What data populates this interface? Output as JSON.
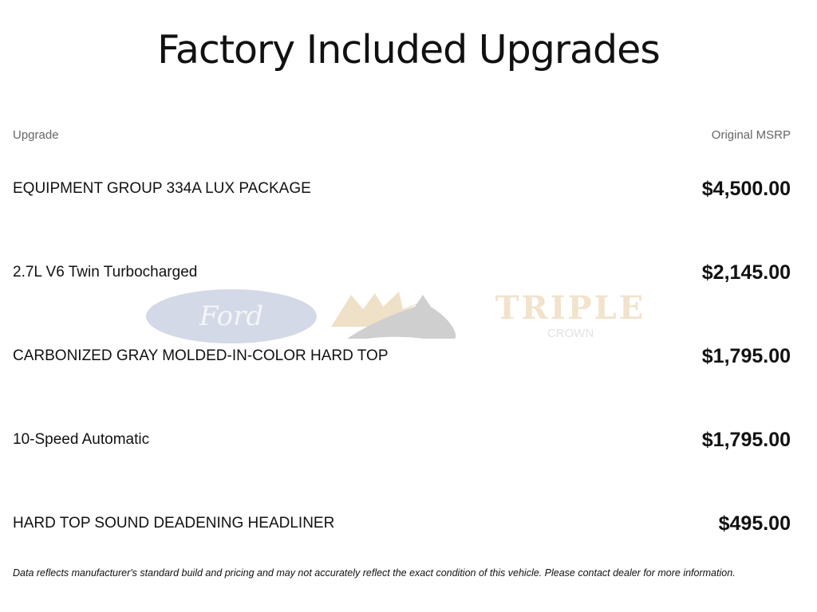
{
  "title": "Factory Included Upgrades",
  "columns": {
    "upgrade": "Upgrade",
    "msrp": "Original MSRP"
  },
  "upgrades": [
    {
      "name": "EQUIPMENT GROUP 334A LUX PACKAGE",
      "price": "$4,500.00"
    },
    {
      "name": "2.7L V6 Twin Turbocharged",
      "price": "$2,145.00"
    },
    {
      "name": "CARBONIZED GRAY MOLDED-IN-COLOR HARD TOP",
      "price": "$1,795.00"
    },
    {
      "name": "10-Speed Automatic",
      "price": "$1,795.00"
    },
    {
      "name": "HARD TOP SOUND DEADENING HEADLINER",
      "price": "$495.00"
    }
  ],
  "watermark": {
    "brand": "Ford",
    "dealer_line1": "TRIPLE",
    "dealer_line2": "CROWN"
  },
  "disclaimer": "Data reflects manufacturer's standard build and pricing and may not accurately reflect the exact condition of this vehicle. Please contact dealer for more information."
}
